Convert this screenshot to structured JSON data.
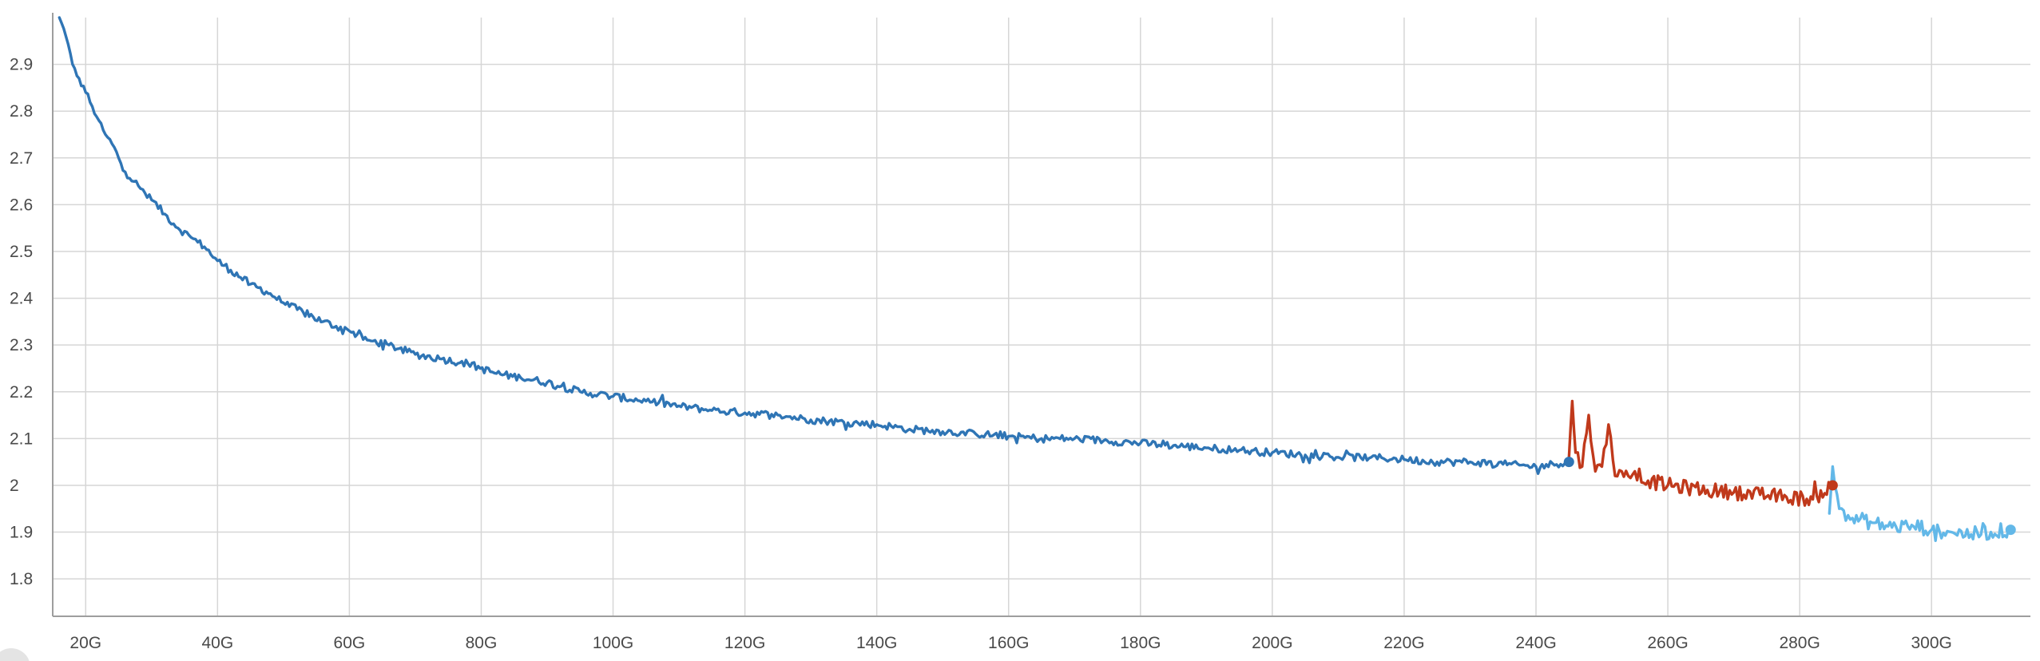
{
  "chart_data": {
    "type": "line",
    "title": "",
    "xlabel": "",
    "ylabel": "",
    "xlim": [
      15,
      315
    ],
    "ylim": [
      1.72,
      3.0
    ],
    "grid": true,
    "legend": "none",
    "x_ticks": [
      20,
      40,
      60,
      80,
      100,
      120,
      140,
      160,
      180,
      200,
      220,
      240,
      260,
      280,
      300
    ],
    "x_tick_labels": [
      "20G",
      "40G",
      "60G",
      "80G",
      "100G",
      "120G",
      "140G",
      "160G",
      "180G",
      "200G",
      "220G",
      "240G",
      "260G",
      "280G",
      "300G"
    ],
    "y_ticks": [
      1.8,
      1.9,
      2.0,
      2.1,
      2.2,
      2.3,
      2.4,
      2.5,
      2.6,
      2.7,
      2.8,
      2.9
    ],
    "y_tick_labels": [
      "1.8",
      "1.9",
      "2",
      "2.1",
      "2.2",
      "2.3",
      "2.4",
      "2.5",
      "2.6",
      "2.7",
      "2.8",
      "2.9"
    ],
    "series": [
      {
        "color": "#2f75b5",
        "end_marker": true,
        "x": [
          16,
          17,
          18,
          19,
          20,
          21,
          22,
          23,
          24,
          25,
          26,
          28,
          30,
          32,
          34,
          36,
          38,
          40,
          42,
          45,
          48,
          50,
          53,
          56,
          58,
          60,
          63,
          66,
          70,
          74,
          78,
          82,
          86,
          90,
          95,
          100,
          105,
          110,
          115,
          120,
          125,
          130,
          135,
          140,
          145,
          150,
          155,
          160,
          165,
          170,
          175,
          180,
          185,
          190,
          195,
          200,
          205,
          210,
          215,
          220,
          225,
          230,
          235,
          240,
          245
        ],
        "y": [
          3.0,
          2.96,
          2.9,
          2.87,
          2.84,
          2.81,
          2.78,
          2.75,
          2.73,
          2.7,
          2.67,
          2.64,
          2.61,
          2.58,
          2.55,
          2.53,
          2.51,
          2.48,
          2.46,
          2.43,
          2.41,
          2.39,
          2.37,
          2.35,
          2.34,
          2.33,
          2.31,
          2.3,
          2.28,
          2.27,
          2.26,
          2.24,
          2.23,
          2.22,
          2.2,
          2.19,
          2.18,
          2.17,
          2.16,
          2.155,
          2.15,
          2.14,
          2.135,
          2.13,
          2.12,
          2.115,
          2.11,
          2.105,
          2.1,
          2.1,
          2.095,
          2.09,
          2.085,
          2.08,
          2.075,
          2.07,
          2.065,
          2.06,
          2.06,
          2.055,
          2.05,
          2.05,
          2.045,
          2.04,
          2.05
        ]
      },
      {
        "color": "#c0391b",
        "end_marker": true,
        "x": [
          245,
          245.5,
          246,
          247,
          248,
          249,
          250,
          251,
          252,
          253,
          254,
          255,
          257,
          260,
          263,
          266,
          270,
          274,
          278,
          282,
          285
        ],
        "y": [
          2.06,
          2.18,
          2.07,
          2.04,
          2.15,
          2.03,
          2.04,
          2.13,
          2.02,
          2.03,
          2.02,
          2.03,
          2.01,
          2.0,
          1.995,
          1.99,
          1.985,
          1.98,
          1.975,
          1.97,
          2.0
        ]
      },
      {
        "color": "#63b8e8",
        "end_marker": true,
        "x": [
          284.5,
          285,
          286,
          288,
          291,
          294,
          297,
          300,
          303,
          306,
          309,
          312
        ],
        "y": [
          1.94,
          2.04,
          1.95,
          1.93,
          1.92,
          1.91,
          1.915,
          1.905,
          1.9,
          1.895,
          1.9,
          1.905
        ]
      }
    ]
  }
}
